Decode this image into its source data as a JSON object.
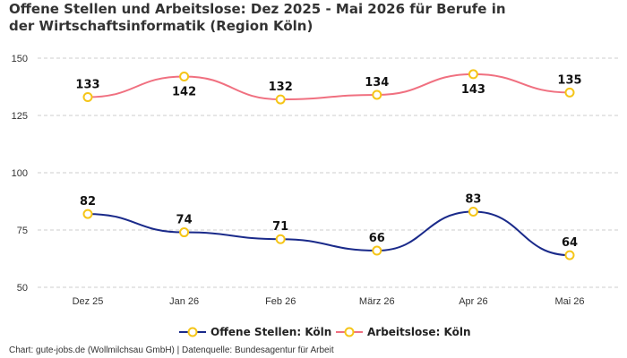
{
  "title": "Offene Stellen und Arbeitslose: Dez 2025 - Mai 2026 für Berufe in der Wirtschaftsinformatik (Region Köln)",
  "footer": "Chart: gute-jobs.de (Wollmilchsau GmbH) | Datenquelle: Bundesagentur für Arbeit",
  "colors": {
    "offene_stellen": "#1a2a8a",
    "arbeitslose": "#f07080",
    "marker_stroke": "#f5c518",
    "marker_fill": "#ffffff",
    "grid": "#cccccc"
  },
  "chart_data": {
    "type": "line",
    "categories": [
      "Dez 25",
      "Jan 26",
      "Feb 26",
      "März 26",
      "Apr 26",
      "Mai 26"
    ],
    "series": [
      {
        "name": "Offene Stellen: Köln",
        "values": [
          82,
          74,
          71,
          66,
          83,
          64
        ]
      },
      {
        "name": "Arbeitslose: Köln",
        "values": [
          133,
          142,
          132,
          134,
          143,
          135
        ]
      }
    ],
    "yticks": [
      50,
      75,
      100,
      125,
      150
    ],
    "ylim": [
      50,
      150
    ],
    "grid": true,
    "legend": "bottom-center",
    "curve": "smooth",
    "data_labels": true
  }
}
